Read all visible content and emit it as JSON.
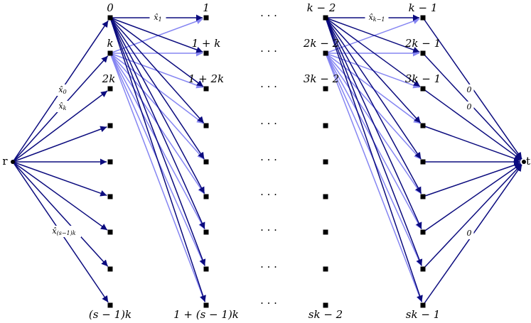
{
  "source": "r",
  "sink": "t",
  "ellipsis": "· · ·",
  "columns": [
    {
      "top_labels": [
        "0",
        "k",
        "2k"
      ],
      "bottom_label": "(s − 1)k"
    },
    {
      "top_labels": [
        "1",
        "1 + k",
        "1 + 2k"
      ],
      "bottom_label": "1 + (s − 1)k"
    },
    {
      "top_labels": [
        "k − 2",
        "2k − 2",
        "3k − 2"
      ],
      "bottom_label": "sk − 2"
    },
    {
      "top_labels": [
        "k − 1",
        "2k − 1",
        "3k − 1"
      ],
      "bottom_label": "sk − 1"
    }
  ],
  "edge_labels": [
    {
      "base": "x̂",
      "sub": "0"
    },
    {
      "base": "x̂",
      "sub": "k"
    },
    {
      "base": "x̂",
      "sub": "(s−1)k"
    },
    {
      "base": "x̂",
      "sub": "1"
    },
    {
      "base": "x̂",
      "sub": "k−1"
    },
    {
      "base": "0"
    },
    {
      "base": "0"
    },
    {
      "base": "0"
    }
  ]
}
